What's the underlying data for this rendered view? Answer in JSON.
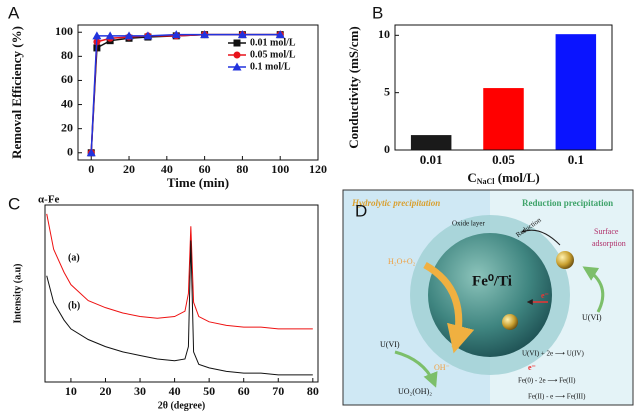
{
  "chart_data": [
    {
      "type": "line",
      "panel_label": "A",
      "x_label": "Time (min)",
      "y_label": "Removal Efficiency (%)",
      "x": [
        0,
        3,
        10,
        20,
        30,
        45,
        60,
        80,
        100
      ],
      "series": [
        {
          "name": "0.01 mol/L",
          "color": "#111111",
          "marker": "square",
          "values": [
            0,
            87,
            93,
            95,
            96,
            97,
            98,
            98,
            98
          ]
        },
        {
          "name": "0.05 mol/L",
          "color": "#e8141c",
          "marker": "circle",
          "values": [
            0,
            92,
            95,
            96,
            97,
            97,
            98,
            98,
            98
          ]
        },
        {
          "name": "0.1 mol/L",
          "color": "#2233dd",
          "marker": "triangle",
          "values": [
            0,
            97,
            97,
            97,
            97,
            98,
            98,
            98,
            98
          ]
        }
      ],
      "xlim": [
        -7,
        120
      ],
      "xticks": [
        0,
        20,
        40,
        60,
        80,
        100,
        120
      ],
      "ylim": [
        -6,
        106
      ],
      "yticks": [
        0,
        20,
        40,
        60,
        80,
        100
      ],
      "legend": "right"
    },
    {
      "type": "bar",
      "panel_label": "B",
      "x_label": "C",
      "x_label_sub": "NaCl",
      "x_label_unit": "(mol/L)",
      "y_label": "Conductivity (mS/cm)",
      "categories": [
        "0.01",
        "0.05",
        "0.1"
      ],
      "values": [
        1.3,
        5.4,
        10.1
      ],
      "colors": [
        "#1a1a1a",
        "#ff0000",
        "#0a14ff"
      ],
      "ylim": [
        0,
        10.9
      ],
      "yticks": [
        0,
        5,
        10
      ]
    },
    {
      "type": "line",
      "panel_label": "C",
      "x_label": "2θ (degree)",
      "y_label": "Intensity (a.u)",
      "peak_label": "α-Fe",
      "x": [
        3,
        5,
        8,
        10,
        15,
        20,
        25,
        30,
        35,
        40,
        43,
        44,
        44.7,
        45.5,
        47,
        50,
        55,
        60,
        65,
        70,
        75,
        80
      ],
      "series": [
        {
          "name": "(a)",
          "color": "#ee1111",
          "values": [
            95,
            75,
            62,
            55,
            46,
            42,
            39,
            37,
            36,
            37,
            40,
            50,
            88,
            45,
            37,
            34,
            32,
            31,
            31,
            30,
            30,
            30
          ]
        },
        {
          "name": "(b)",
          "color": "#111111",
          "values": [
            60,
            45,
            35,
            30,
            24,
            20,
            17,
            15,
            13,
            12,
            13,
            20,
            80,
            17,
            10,
            8,
            6,
            5,
            5,
            4,
            4,
            4
          ]
        }
      ],
      "xlim": [
        2.5,
        81.5
      ],
      "xticks": [
        10,
        20,
        30,
        40,
        50,
        60,
        70,
        80
      ],
      "ylim": [
        0,
        100
      ]
    }
  ],
  "diagram": {
    "panel_label": "D",
    "left_header": "Hydrolytic precipitation",
    "right_header": "Reduction precipitation",
    "oxide_layer": "Oxide layer",
    "reduction": "Reduction",
    "core": "Fe⁰/Ti",
    "surface_adsorption": [
      "Surface",
      "adsorption"
    ],
    "u6_right": "U(VI)",
    "h2o_o2": "H₂O+O₂",
    "electron_1": "e⁻",
    "electron_2": "e⁻",
    "reduction_eq": "U(VI) + 2e ⟶ U(IV)",
    "u6_left": "U(VI)",
    "oh": "OH⁻",
    "precipitate": "UO₂(OH)₂",
    "fe_eq_1": "Fe(0) - 2e ⟶ Fe(II)",
    "fe_eq_2": "Fe(II) - e ⟶ Fe(III)"
  }
}
